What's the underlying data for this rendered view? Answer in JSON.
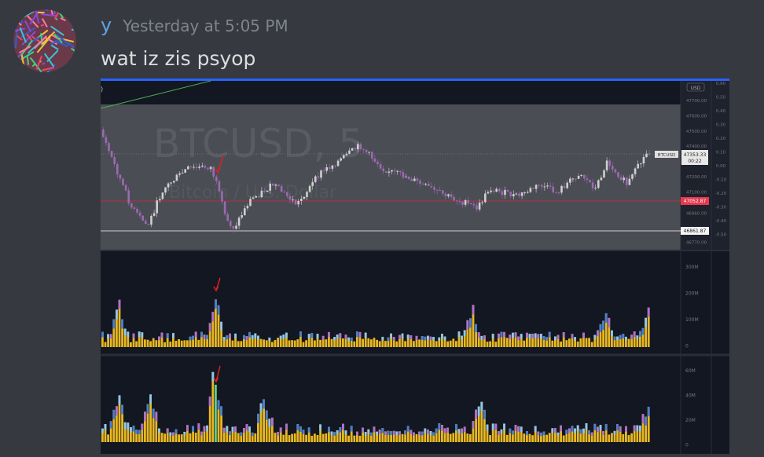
{
  "message": {
    "username": "y",
    "timestamp": "Yesterday at 5:05 PM",
    "text": "wat iz zis psyop"
  },
  "chart_image": {
    "watermark": "BTCUSD, 5",
    "watermark_subtitle": "Bitcoin / U.S. Dollar",
    "currency": "USD",
    "symbol_tag": "BTCUSD",
    "price_label": "47353.33",
    "countdown": "00:22",
    "level_labels": [
      "47052.87",
      "46861.87"
    ],
    "price_axis": [
      "47700.00",
      "47600.00",
      "47500.00",
      "47400.00",
      "47200.00",
      "47100.00",
      "46960.00",
      "46770.00"
    ],
    "percent_axis": [
      "0.60",
      "0.50",
      "0.40",
      "0.30",
      "0.20",
      "0.10",
      "0.00",
      "-0.10",
      "-0.20",
      "-0.30",
      "-0.40",
      "-0.50"
    ],
    "volume_axis_1": [
      "300M",
      "200M",
      "100M",
      "0"
    ],
    "volume_axis_2": [
      "60M",
      "40M",
      "20M",
      "0"
    ]
  }
}
